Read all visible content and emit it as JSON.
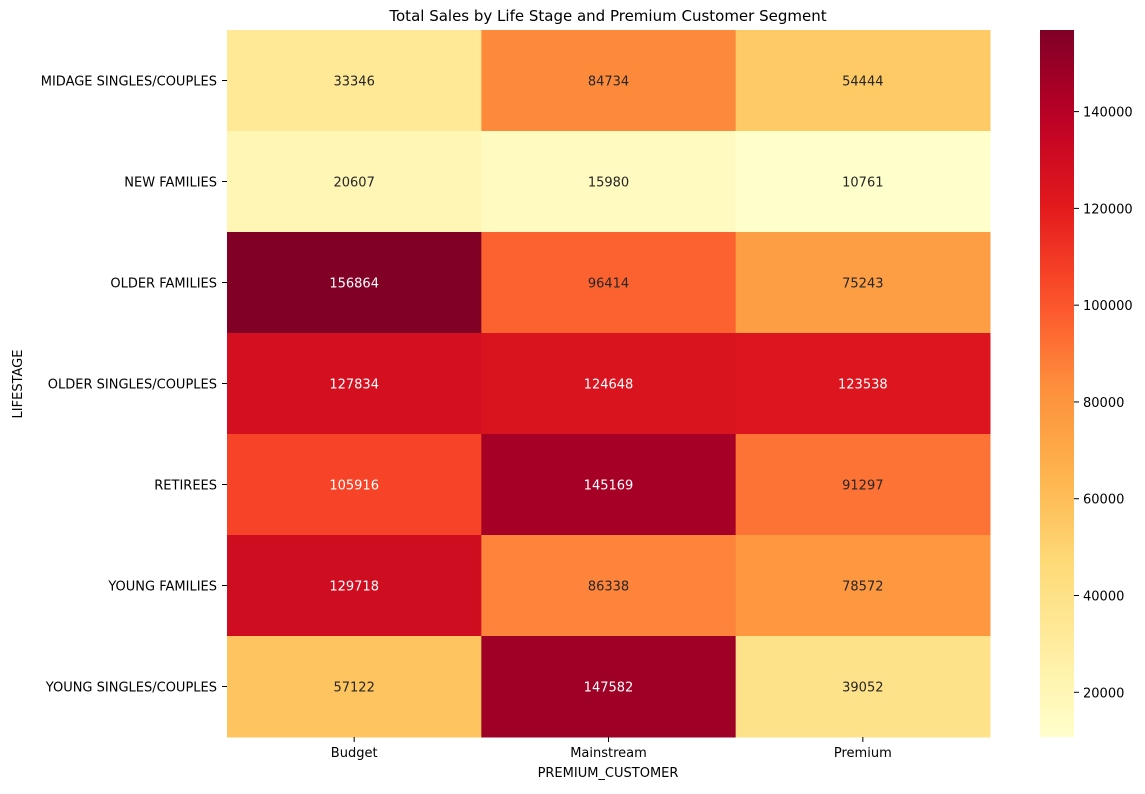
{
  "chart_data": {
    "type": "heatmap",
    "title": "Total Sales by Life Stage and Premium Customer Segment",
    "xlabel": "PREMIUM_CUSTOMER",
    "ylabel": "LIFESTAGE",
    "x_categories": [
      "Budget",
      "Mainstream",
      "Premium"
    ],
    "y_categories": [
      "MIDAGE SINGLES/COUPLES",
      "NEW FAMILIES",
      "OLDER FAMILIES",
      "OLDER SINGLES/COUPLES",
      "RETIREES",
      "YOUNG FAMILIES",
      "YOUNG SINGLES/COUPLES"
    ],
    "values": [
      [
        33346,
        84734,
        54444
      ],
      [
        20607,
        15980,
        10761
      ],
      [
        156864,
        96414,
        75243
      ],
      [
        127834,
        124648,
        123538
      ],
      [
        105916,
        145169,
        91297
      ],
      [
        129718,
        86338,
        78572
      ],
      [
        57122,
        147582,
        39052
      ]
    ],
    "colormap": "YlOrRd",
    "value_range": [
      10761,
      156864
    ],
    "colorbar": {
      "ticks": [
        20000,
        40000,
        60000,
        80000,
        100000,
        120000,
        140000
      ],
      "tick_labels": [
        "20000",
        "40000",
        "60000",
        "80000",
        "100000",
        "120000",
        "140000"
      ]
    },
    "annotations": "cell values shown"
  }
}
